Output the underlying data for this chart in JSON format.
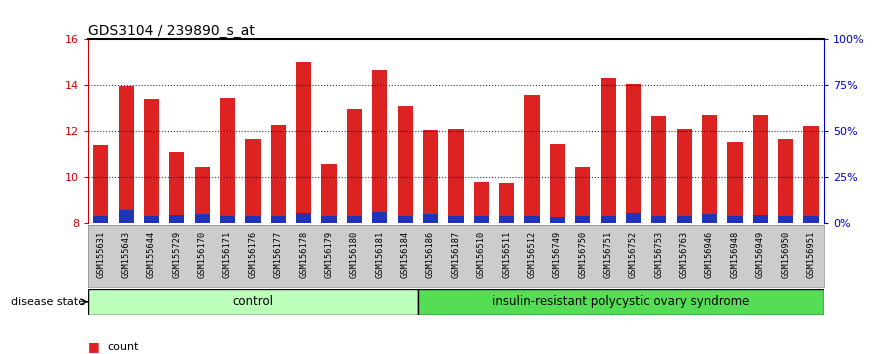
{
  "title": "GDS3104 / 239890_s_at",
  "samples": [
    "GSM155631",
    "GSM155643",
    "GSM155644",
    "GSM155729",
    "GSM156170",
    "GSM156171",
    "GSM156176",
    "GSM156177",
    "GSM156178",
    "GSM156179",
    "GSM156180",
    "GSM156181",
    "GSM156184",
    "GSM156186",
    "GSM156187",
    "GSM156510",
    "GSM156511",
    "GSM156512",
    "GSM156749",
    "GSM156750",
    "GSM156751",
    "GSM156752",
    "GSM156753",
    "GSM156763",
    "GSM156946",
    "GSM156948",
    "GSM156949",
    "GSM156950",
    "GSM156951"
  ],
  "counts": [
    11.4,
    13.95,
    13.4,
    11.1,
    10.45,
    13.45,
    11.65,
    12.25,
    15.0,
    10.55,
    12.95,
    14.65,
    13.1,
    12.05,
    12.1,
    9.8,
    9.75,
    13.55,
    11.45,
    10.45,
    14.3,
    14.05,
    12.65,
    12.1,
    12.7,
    11.5,
    12.7,
    11.65,
    12.2
  ],
  "percentile_values": [
    0.3,
    0.55,
    0.3,
    0.35,
    0.4,
    0.3,
    0.3,
    0.3,
    0.45,
    0.3,
    0.3,
    0.5,
    0.3,
    0.4,
    0.3,
    0.3,
    0.3,
    0.3,
    0.25,
    0.3,
    0.3,
    0.45,
    0.3,
    0.3,
    0.4,
    0.3,
    0.35,
    0.3,
    0.3
  ],
  "control_count": 13,
  "disease_count": 16,
  "ymin": 8,
  "ymax": 16,
  "bar_color_red": "#dd2222",
  "bar_color_blue": "#2233bb",
  "tickbg_color": "#cccccc",
  "control_color": "#bbffbb",
  "disease_color": "#55dd55",
  "left_yaxis_color": "#cc0000",
  "right_yaxis_color": "#0000cc",
  "right_yticks": [
    0,
    25,
    50,
    75,
    100
  ],
  "right_ylabels": [
    "0%",
    "25%",
    "50%",
    "75%",
    "100%"
  ],
  "left_yticks": [
    8,
    10,
    12,
    14,
    16
  ]
}
